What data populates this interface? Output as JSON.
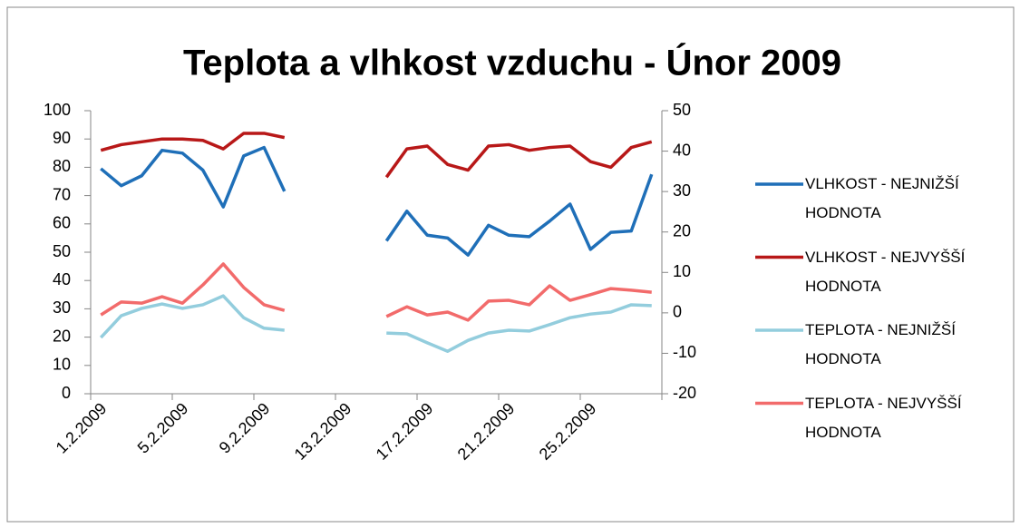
{
  "chart_data": {
    "type": "line",
    "title": "Teplota a vlhkost vzduchu - Únor 2009",
    "categories": [
      "1.2.2009",
      null,
      null,
      null,
      "5.2.2009",
      null,
      null,
      null,
      "9.2.2009",
      null,
      null,
      null,
      "13.2.2009",
      null,
      null,
      null,
      "17.2.2009",
      null,
      null,
      null,
      "21.2.2009",
      null,
      null,
      null,
      "25.2.2009",
      null,
      null,
      null
    ],
    "series": [
      {
        "name": "VLHKOST - NEJNIŽŠÍ HODNOTA",
        "color": "#1f6fb8",
        "values": [
          79.5,
          73.5,
          77,
          86,
          85,
          79,
          66,
          84,
          87,
          71.5,
          null,
          null,
          null,
          null,
          54,
          64.5,
          56,
          55,
          49,
          59.5,
          56,
          55.5,
          61,
          67,
          51,
          57,
          57.5,
          77.5
        ]
      },
      {
        "name": "VLHKOST - NEJVYŠŠÍ HODNOTA",
        "color": "#b81818",
        "values": [
          86,
          88,
          89,
          90,
          90,
          89.5,
          86.5,
          92,
          92,
          90.5,
          null,
          null,
          null,
          null,
          76.5,
          86.5,
          87.5,
          81,
          79,
          87.5,
          88,
          86,
          87,
          87.5,
          82,
          80,
          87,
          89
        ]
      },
      {
        "name": "TEPLOTA - NEJNIŽŠÍ HODNOTA",
        "color": "#93cddd",
        "axis": "y2",
        "values": [
          -6.1,
          -0.7,
          1.1,
          2.2,
          1.1,
          2.0,
          4.2,
          -1.2,
          -3.8,
          -4.3,
          null,
          null,
          null,
          null,
          -5,
          -5.2,
          -7.4,
          -9.5,
          -6.8,
          -5,
          -4.3,
          -4.5,
          -2.9,
          -1.2,
          -0.3,
          0.2,
          2.0,
          1.8
        ]
      },
      {
        "name": "TEPLOTA - NEJVYŠŠÍ HODNOTA",
        "color": "#f26b6b",
        "axis": "y2",
        "values": [
          -0.5,
          2.7,
          2.4,
          4.0,
          2.4,
          6.9,
          12.1,
          6.3,
          2.0,
          0.6,
          null,
          null,
          null,
          null,
          -0.9,
          1.5,
          -0.5,
          0.2,
          -1.8,
          2.9,
          3.1,
          2.0,
          6.7,
          3.1,
          4.5,
          6.0,
          5.6,
          5.1
        ]
      }
    ],
    "ylim": [
      0,
      100
    ],
    "yticks": [
      0,
      10,
      20,
      30,
      40,
      50,
      60,
      70,
      80,
      90,
      100
    ],
    "y2lim": [
      -20,
      50
    ],
    "y2ticks": [
      -20,
      -10,
      0,
      10,
      20,
      30,
      40,
      50
    ],
    "grid": false,
    "legend": "right"
  }
}
